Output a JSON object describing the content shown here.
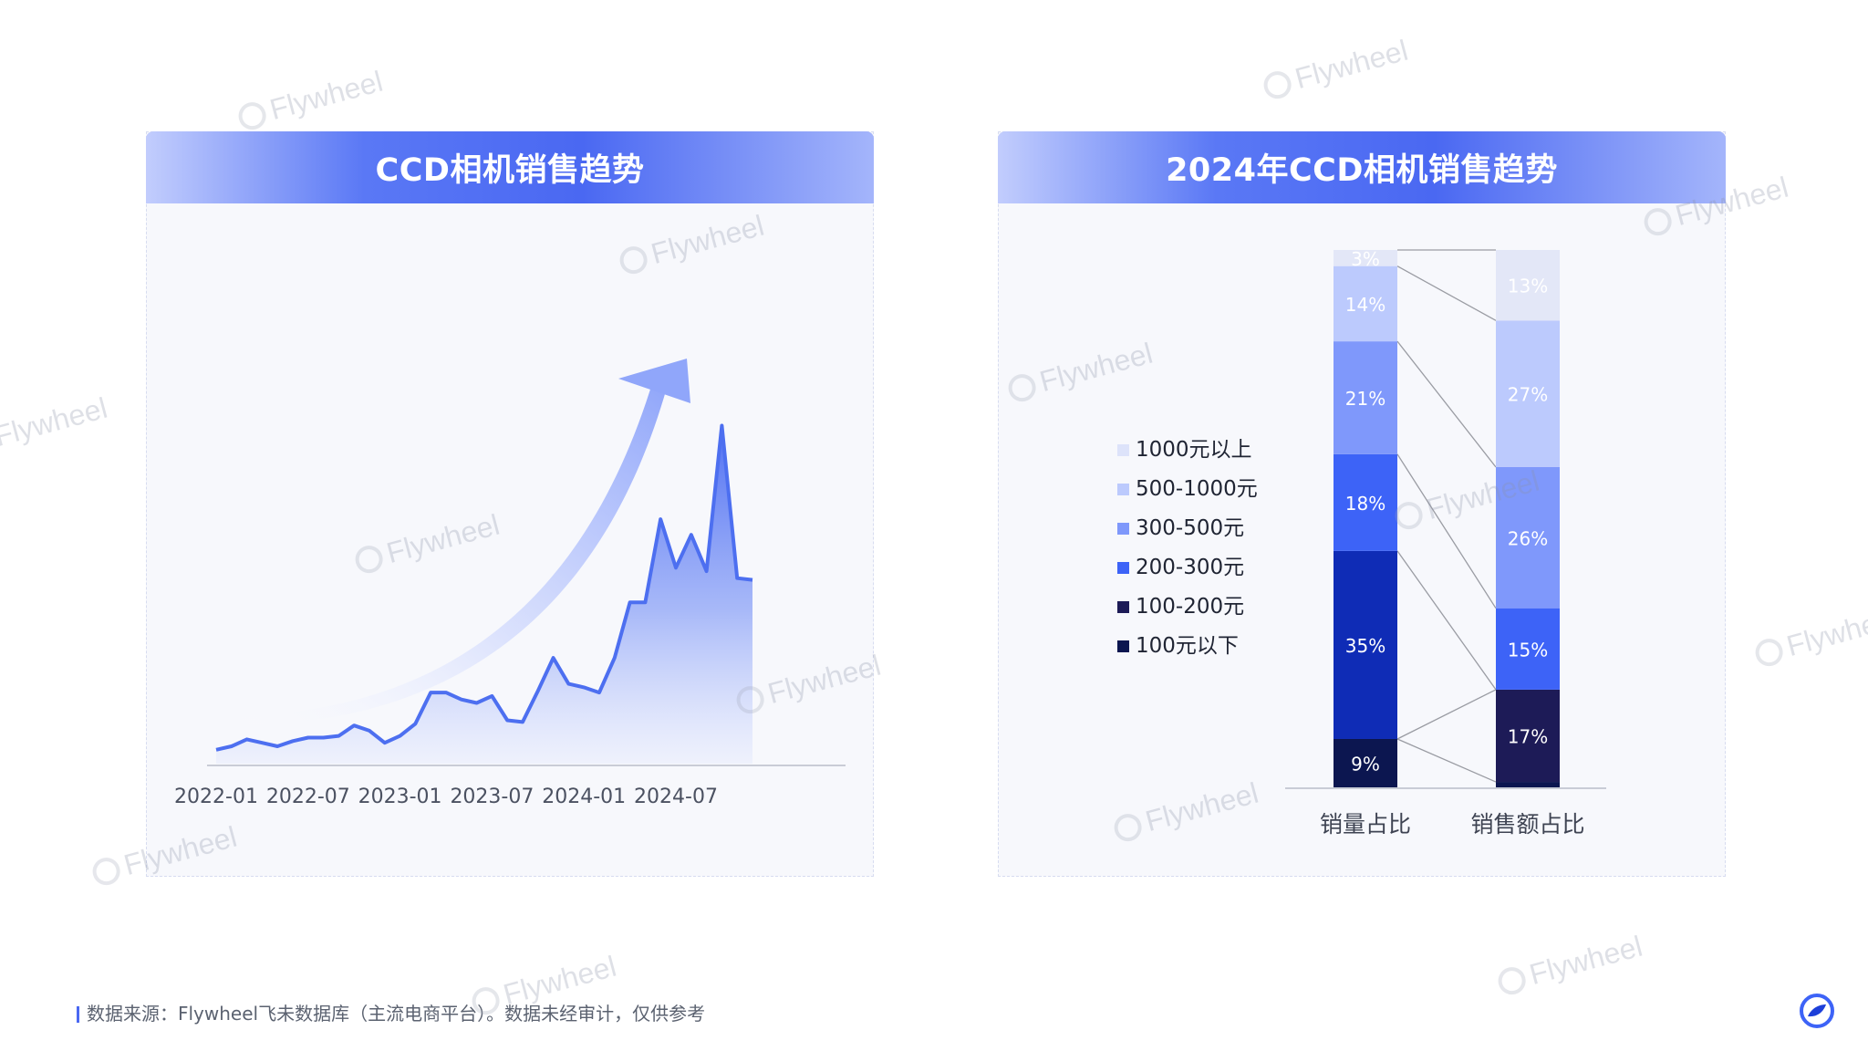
{
  "left_chart": {
    "title": "CCD相机销售趋势",
    "chart_data": {
      "type": "area",
      "title": "CCD相机销售趋势",
      "x_tick_labels": [
        "2022-01",
        "2022-07",
        "2023-01",
        "2023-07",
        "2024-01",
        "2024-07"
      ],
      "x": [
        "2022-01",
        "2022-02",
        "2022-03",
        "2022-04",
        "2022-05",
        "2022-06",
        "2022-07",
        "2022-08",
        "2022-09",
        "2022-10",
        "2022-11",
        "2022-12",
        "2023-01",
        "2023-02",
        "2023-03",
        "2023-04",
        "2023-05",
        "2023-06",
        "2023-07",
        "2023-08",
        "2023-09",
        "2023-10",
        "2023-11",
        "2023-12",
        "2024-01",
        "2024-02",
        "2024-03",
        "2024-04",
        "2024-05",
        "2024-06",
        "2024-07",
        "2024-08",
        "2024-09",
        "2024-10",
        "2024-11",
        "2024-12"
      ],
      "values": [
        4,
        5,
        7,
        6,
        5,
        6.5,
        7.5,
        7.5,
        8,
        11,
        9.5,
        6,
        8,
        11.5,
        20.5,
        20.5,
        18.5,
        17.5,
        19.5,
        12.5,
        12,
        21,
        30.5,
        23,
        22,
        20.5,
        30.5,
        46.5,
        46.5,
        70.5,
        56.5,
        66,
        55.5,
        97.5,
        53.5,
        53
      ],
      "ylim": [
        0,
        100
      ],
      "grid": false
    }
  },
  "right_chart": {
    "title": "2024年CCD相机销售趋势",
    "chart_data": {
      "type": "bar",
      "stacked": true,
      "normalized": true,
      "title": "2024年CCD相机销售趋势",
      "categories": [
        "销量占比",
        "销售额占比"
      ],
      "series": [
        {
          "name": "100元以下",
          "color": "#0c1650",
          "values": [
            9,
            1
          ],
          "labels": [
            "9%",
            ""
          ]
        },
        {
          "name": "100-200元",
          "color": "#1d1b57",
          "values": [
            0,
            17
          ],
          "labels": [
            "",
            "17%"
          ]
        },
        {
          "name": "200-300元",
          "color": "#0f2cb6",
          "values": [
            35,
            0
          ],
          "labels": [
            "35%",
            ""
          ]
        },
        {
          "name": "300-500元",
          "color": "#3d63f7",
          "values": [
            18,
            15
          ],
          "labels": [
            "18%",
            "15%"
          ]
        },
        {
          "name": "500-1000元",
          "color": "#7f98fb",
          "values": [
            21,
            26
          ],
          "labels": [
            "21%",
            "26%"
          ]
        },
        {
          "name": "1000元以上",
          "color": "#bccafd",
          "values": [
            14,
            27
          ],
          "labels": [
            "14%",
            "27%"
          ]
        },
        {
          "name": "",
          "color": "#e3e7f7",
          "values": [
            3,
            13
          ],
          "labels": [
            "3%",
            "13%"
          ]
        }
      ],
      "legend": {
        "placement": "left",
        "items": [
          {
            "label": "1000元以上",
            "color": "#dde3fa"
          },
          {
            "label": "500-1000元",
            "color": "#bccafd"
          },
          {
            "label": "300-500元",
            "color": "#7f98fb"
          },
          {
            "label": "200-300元",
            "color": "#3d63f7"
          },
          {
            "label": "100-200元",
            "color": "#1d1b57"
          },
          {
            "label": "100元以下",
            "color": "#0c1650"
          }
        ]
      },
      "grid": false
    }
  },
  "footer": {
    "source_text": "数据来源：Flywheel飞未数据库（主流电商平台）。数据未经审计，仅供参考",
    "logo_icon": "flywheel-logo-icon"
  },
  "watermark": {
    "text": "Flywheel"
  },
  "colors": {
    "accent": "#4a68f2",
    "line": "#4d6ff0",
    "card_bg": "#f7f8fc"
  }
}
